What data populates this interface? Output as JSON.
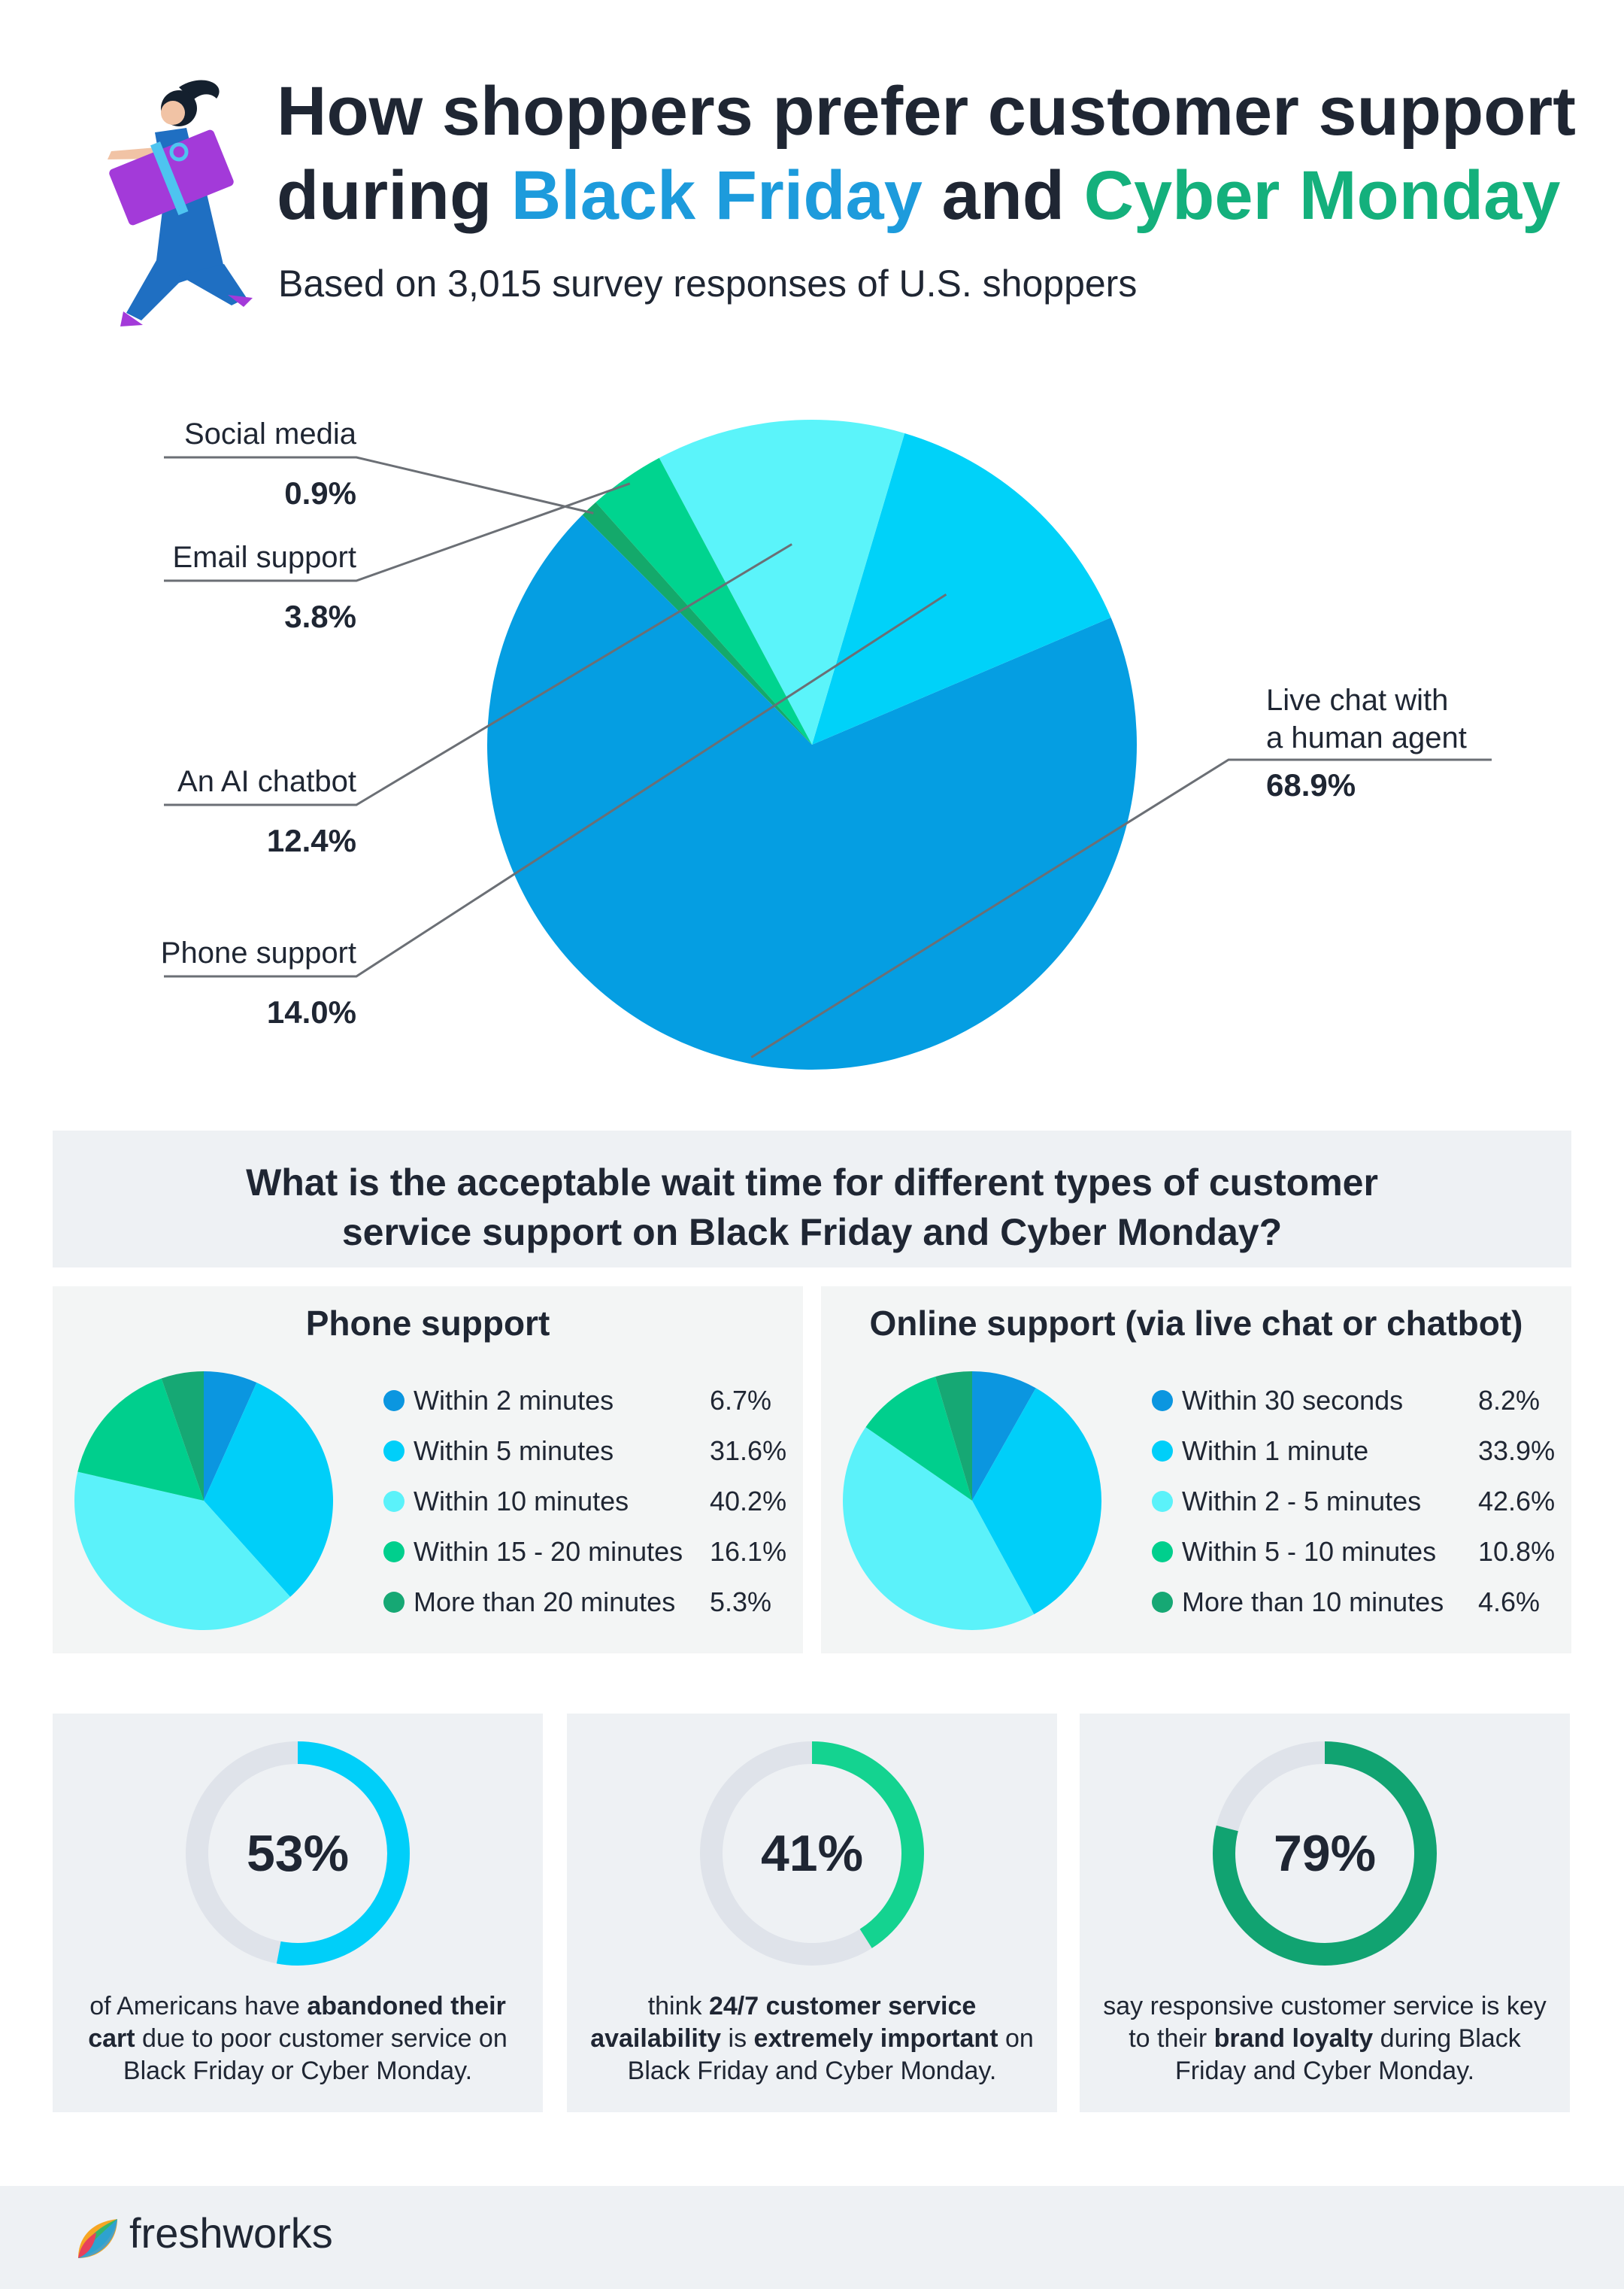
{
  "header": {
    "title_part1": "How shoppers prefer customer support",
    "title_part2": "during",
    "title_highlight1": "Black Friday",
    "title_part3": "and",
    "title_highlight2": "Cyber Monday",
    "subtitle": "Based on 3,015 survey responses of U.S. shoppers"
  },
  "chart_data": [
    {
      "type": "pie",
      "labels": [
        "Live chat with a human agent",
        "Phone support",
        "An AI chatbot",
        "Email support",
        "Social media"
      ],
      "values": [
        68.9,
        14.0,
        12.4,
        3.8,
        0.9
      ],
      "value_labels": [
        "68.9%",
        "14.0%",
        "12.4%",
        "3.8%",
        "0.9%"
      ],
      "colors": [
        "#059ee2",
        "#00d2f9",
        "#5bf4fa",
        "#00d48f",
        "#14a96b"
      ]
    },
    {
      "type": "pie",
      "title": "Phone support",
      "labels": [
        "Within 2 minutes",
        "Within 5 minutes",
        "Within 10 minutes",
        "Within 15 - 20 minutes",
        "More than 20 minutes"
      ],
      "values": [
        6.7,
        31.6,
        40.2,
        16.1,
        5.3
      ],
      "value_labels": [
        "6.7%",
        "31.6%",
        "40.2%",
        "16.1%",
        "5.3%"
      ],
      "colors": [
        "#0b96e0",
        "#00cff9",
        "#5bf2fa",
        "#00cf8d",
        "#16a874"
      ],
      "legend": "right"
    },
    {
      "type": "pie",
      "title": "Online support (via live chat or chatbot)",
      "labels": [
        "Within 30 seconds",
        "Within 1 minute",
        "Within 2 - 5 minutes",
        "Within 5 - 10 minutes",
        "More than 10 minutes"
      ],
      "values": [
        8.2,
        33.9,
        42.6,
        10.8,
        4.6
      ],
      "value_labels": [
        "8.2%",
        "33.9%",
        "42.6%",
        "10.8%",
        "4.6%"
      ],
      "colors": [
        "#0b96e0",
        "#00cff9",
        "#5bf2fa",
        "#00cf8d",
        "#16a874"
      ],
      "legend": "right"
    }
  ],
  "wait_question": {
    "line1": "What is the acceptable wait time for different types of customer",
    "line2": "service support on Black Friday and Cyber Monday?"
  },
  "stats": [
    {
      "value": 53,
      "label": "53%",
      "color": "#00cff9",
      "desc_pre": "of Americans have ",
      "desc_bold1": "abandoned their cart",
      "desc_mid": " due to poor customer service on Black Friday or Cyber Monday.",
      "desc_bold2": "",
      "desc_post": ""
    },
    {
      "value": 41,
      "label": "41%",
      "color": "#14d390",
      "desc_pre": "think ",
      "desc_bold1": "24/7 customer service availability",
      "desc_mid": " is ",
      "desc_bold2": "extremely important",
      "desc_post": " on Black Friday and Cyber Monday."
    },
    {
      "value": 79,
      "label": "79%",
      "color": "#11a371",
      "desc_pre": "say responsive customer service is key to their ",
      "desc_bold1": "brand loyalty",
      "desc_mid": " during Black Friday and Cyber Monday.",
      "desc_bold2": "",
      "desc_post": ""
    }
  ],
  "footer": {
    "brand": "freshworks"
  }
}
